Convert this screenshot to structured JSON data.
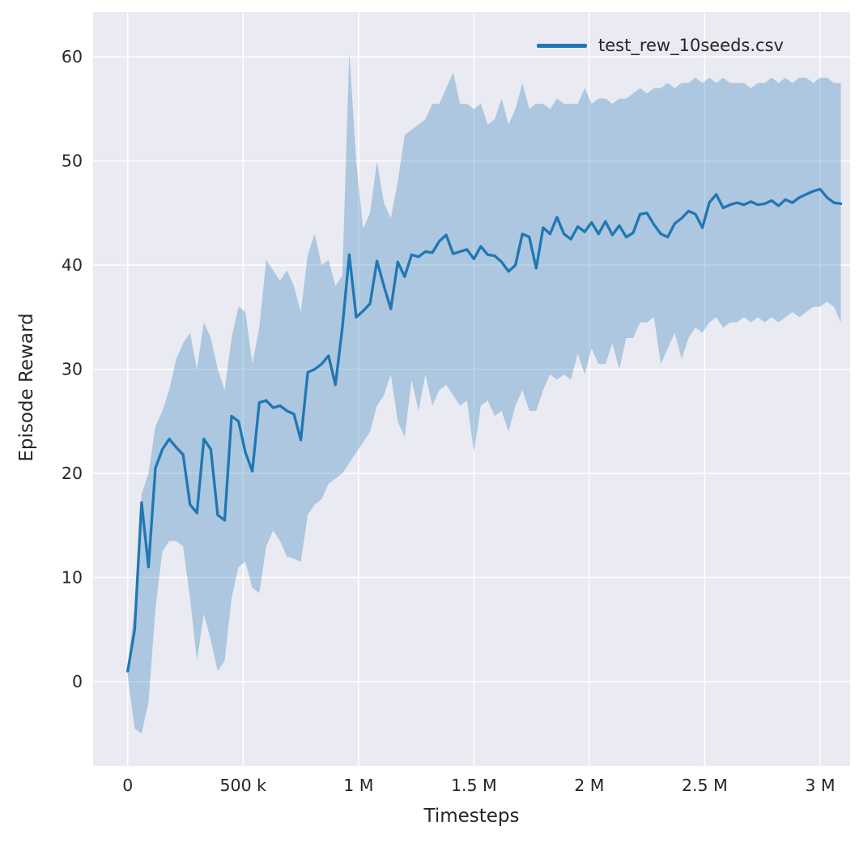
{
  "figure": {
    "background": "#ffffff",
    "plot_background": "#eaeaf2",
    "grid_color": "#ffffff",
    "text_color": "#262626"
  },
  "chart_data": {
    "type": "line",
    "title": "",
    "xlabel": "Timesteps",
    "ylabel": "Episode Reward",
    "grid": true,
    "legend_position": "upper right",
    "x_scale": 1000,
    "xlim": [
      -150,
      3130
    ],
    "ylim": [
      -8.1,
      64.3
    ],
    "x_ticks": [
      0,
      500,
      1000,
      1500,
      2000,
      2500,
      3000
    ],
    "x_tick_labels": [
      "0",
      "500 k",
      "1 M",
      "1.5 M",
      "2 M",
      "2.5 M",
      "3 M"
    ],
    "y_ticks": [
      0,
      10,
      20,
      30,
      40,
      50,
      60
    ],
    "y_tick_labels": [
      "0",
      "10",
      "20",
      "30",
      "40",
      "50",
      "60"
    ],
    "series": [
      {
        "name": "test_rew_10seeds.csv",
        "color": "#1f77b4",
        "band_opacity": 0.3,
        "x": [
          0,
          30,
          60,
          90,
          120,
          150,
          180,
          210,
          240,
          270,
          300,
          330,
          360,
          390,
          420,
          450,
          480,
          510,
          540,
          570,
          600,
          630,
          660,
          690,
          720,
          750,
          780,
          810,
          840,
          870,
          900,
          930,
          960,
          990,
          1020,
          1050,
          1080,
          1110,
          1140,
          1170,
          1200,
          1230,
          1260,
          1290,
          1320,
          1350,
          1380,
          1410,
          1440,
          1470,
          1500,
          1530,
          1560,
          1590,
          1620,
          1650,
          1680,
          1710,
          1740,
          1770,
          1800,
          1830,
          1860,
          1890,
          1920,
          1950,
          1980,
          2010,
          2040,
          2070,
          2100,
          2130,
          2160,
          2190,
          2220,
          2250,
          2280,
          2310,
          2340,
          2370,
          2400,
          2430,
          2460,
          2490,
          2520,
          2550,
          2580,
          2610,
          2640,
          2670,
          2700,
          2730,
          2760,
          2790,
          2820,
          2850,
          2880,
          2910,
          2940,
          2970,
          3000,
          3030,
          3060,
          3090
        ],
        "mean": [
          1.0,
          5.0,
          17.2,
          11.0,
          20.5,
          22.3,
          23.3,
          22.5,
          21.8,
          17.0,
          16.2,
          23.3,
          22.3,
          16.0,
          15.5,
          25.5,
          25.0,
          22.0,
          20.2,
          26.8,
          27.0,
          26.3,
          26.5,
          26.0,
          25.7,
          23.2,
          29.7,
          30.0,
          30.5,
          31.3,
          28.5,
          34.0,
          41.0,
          35.0,
          35.6,
          36.3,
          40.4,
          38.0,
          35.8,
          40.3,
          38.9,
          41.0,
          40.8,
          41.3,
          41.2,
          42.3,
          42.9,
          41.1,
          41.3,
          41.5,
          40.6,
          41.8,
          41.0,
          40.9,
          40.3,
          39.4,
          40.0,
          43.0,
          42.7,
          39.7,
          43.6,
          43.0,
          44.6,
          43.0,
          42.5,
          43.7,
          43.2,
          44.1,
          43.0,
          44.2,
          42.9,
          43.8,
          42.7,
          43.1,
          44.9,
          45.0,
          43.9,
          43.0,
          42.7,
          44.0,
          44.5,
          45.2,
          44.9,
          43.6,
          46.0,
          46.8,
          45.5,
          45.8,
          46.0,
          45.8,
          46.1,
          45.8,
          45.9,
          46.2,
          45.7,
          46.3,
          46.0,
          46.5,
          46.8,
          47.1,
          47.3,
          46.5,
          46.0,
          45.9
        ],
        "band_lower": [
          0.5,
          -4.5,
          -5.0,
          -2.0,
          7.0,
          12.5,
          13.5,
          13.5,
          13.0,
          8.0,
          2.0,
          6.5,
          4.0,
          1.0,
          2.0,
          8.0,
          11.0,
          11.5,
          9.0,
          8.5,
          13.0,
          14.5,
          13.5,
          12.0,
          11.8,
          11.5,
          16.0,
          17.0,
          17.5,
          19.0,
          19.5,
          20.0,
          21.0,
          22.0,
          23.0,
          24.0,
          26.5,
          27.5,
          29.5,
          25.0,
          23.5,
          29.0,
          26.0,
          29.5,
          26.5,
          28.0,
          28.5,
          27.5,
          26.5,
          27.0,
          22.0,
          26.5,
          27.0,
          25.5,
          26.0,
          24.0,
          26.5,
          28.0,
          26.0,
          26.0,
          28.0,
          29.5,
          29.0,
          29.5,
          29.0,
          31.5,
          29.5,
          32.0,
          30.5,
          30.5,
          32.5,
          30.0,
          33.0,
          33.0,
          34.5,
          34.5,
          35.0,
          30.5,
          32.0,
          33.5,
          31.0,
          33.0,
          34.0,
          33.5,
          34.5,
          35.0,
          34.0,
          34.5,
          34.5,
          35.0,
          34.5,
          35.0,
          34.5,
          35.0,
          34.5,
          35.0,
          35.5,
          35.0,
          35.5,
          36.0,
          36.0,
          36.5,
          36.0,
          34.5
        ],
        "band_upper": [
          1.5,
          7.0,
          18.0,
          20.0,
          24.5,
          26.0,
          28.0,
          31.0,
          32.5,
          33.5,
          30.0,
          34.5,
          33.0,
          30.0,
          28.0,
          33.0,
          36.0,
          35.5,
          30.5,
          34.0,
          40.5,
          39.5,
          38.5,
          39.5,
          38.0,
          35.5,
          41.0,
          43.0,
          40.0,
          40.5,
          38.0,
          39.0,
          60.5,
          50.0,
          43.5,
          45.0,
          50.0,
          46.0,
          44.5,
          48.0,
          52.5,
          53.0,
          53.5,
          54.0,
          55.5,
          55.5,
          57.0,
          58.5,
          55.5,
          55.5,
          55.0,
          55.5,
          53.5,
          54.0,
          56.0,
          53.5,
          55.0,
          57.5,
          55.0,
          55.5,
          55.5,
          55.0,
          56.0,
          55.5,
          55.5,
          55.5,
          57.0,
          55.5,
          56.0,
          56.0,
          55.5,
          56.0,
          56.0,
          56.5,
          57.0,
          56.5,
          57.0,
          57.0,
          57.5,
          57.0,
          57.5,
          57.5,
          58.0,
          57.5,
          58.0,
          57.5,
          58.0,
          57.5,
          57.5,
          57.5,
          57.0,
          57.5,
          57.5,
          58.0,
          57.5,
          58.0,
          57.5,
          58.0,
          58.0,
          57.5,
          58.0,
          58.0,
          57.5,
          57.5
        ]
      }
    ]
  }
}
